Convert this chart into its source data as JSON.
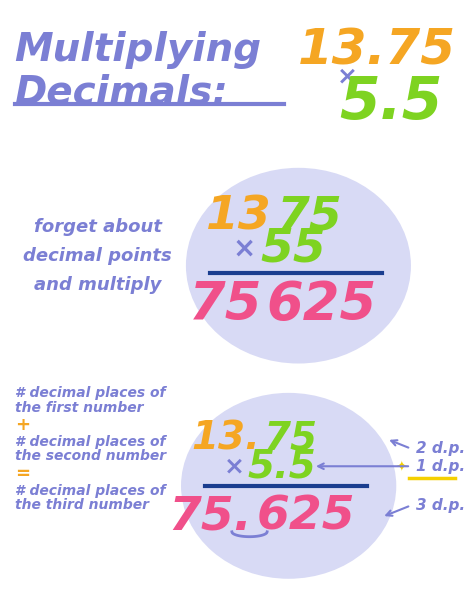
{
  "bg_color": "#ffffff",
  "title_line1": "Multiplying",
  "title_line2": "Decimals:",
  "title_color": "#7b7fd4",
  "title_underline_color": "#7b7fd4",
  "top_num1": "13.75",
  "top_num1_color": "#f5a623",
  "top_times": "×",
  "top_times_color": "#7b7fd4",
  "top_num2": "5.5",
  "top_num2_color": "#7ed321",
  "ellipse1_color": "#d8daf5",
  "ellipse2_color": "#d8daf5",
  "step1_label": "forget about\ndecimal points\nand multiply",
  "step1_label_color": "#7b7fd4",
  "step2_label_line1": "# decimal places of",
  "step2_label_line2": "the first number",
  "step2_plus": "+",
  "step2_label_line3": "# decimal places of",
  "step2_label_line4": "the second number",
  "step2_equals": "=",
  "step2_label_line5": "# decimal places of",
  "step2_label_line6": "the third number",
  "step2_label_color": "#7b7fd4",
  "step2_plus_color": "#f5a623",
  "step2_equals_color": "#f5a623",
  "num1_no_decimal": "1375",
  "num2_no_decimal": "55",
  "result_no_decimal": "75625",
  "num1_decimal": "13.75",
  "num2_decimal": "5.5",
  "result_decimal": "75.625",
  "orange_color": "#f5a623",
  "green_color": "#7ed321",
  "pink_color": "#f0508a",
  "blue_color": "#7b7fd4",
  "times_color": "#7b7fd4",
  "line_color": "#1a3d8f",
  "dp1_text": "2 d.p.",
  "dp2_text": "1 d.p.",
  "dp3_text": "3 d.p.",
  "dp_color": "#7b7fd4",
  "arrow_color": "#7b7fd4",
  "star_color": "#f5d000",
  "squiggle_color": "#7b7fd4"
}
